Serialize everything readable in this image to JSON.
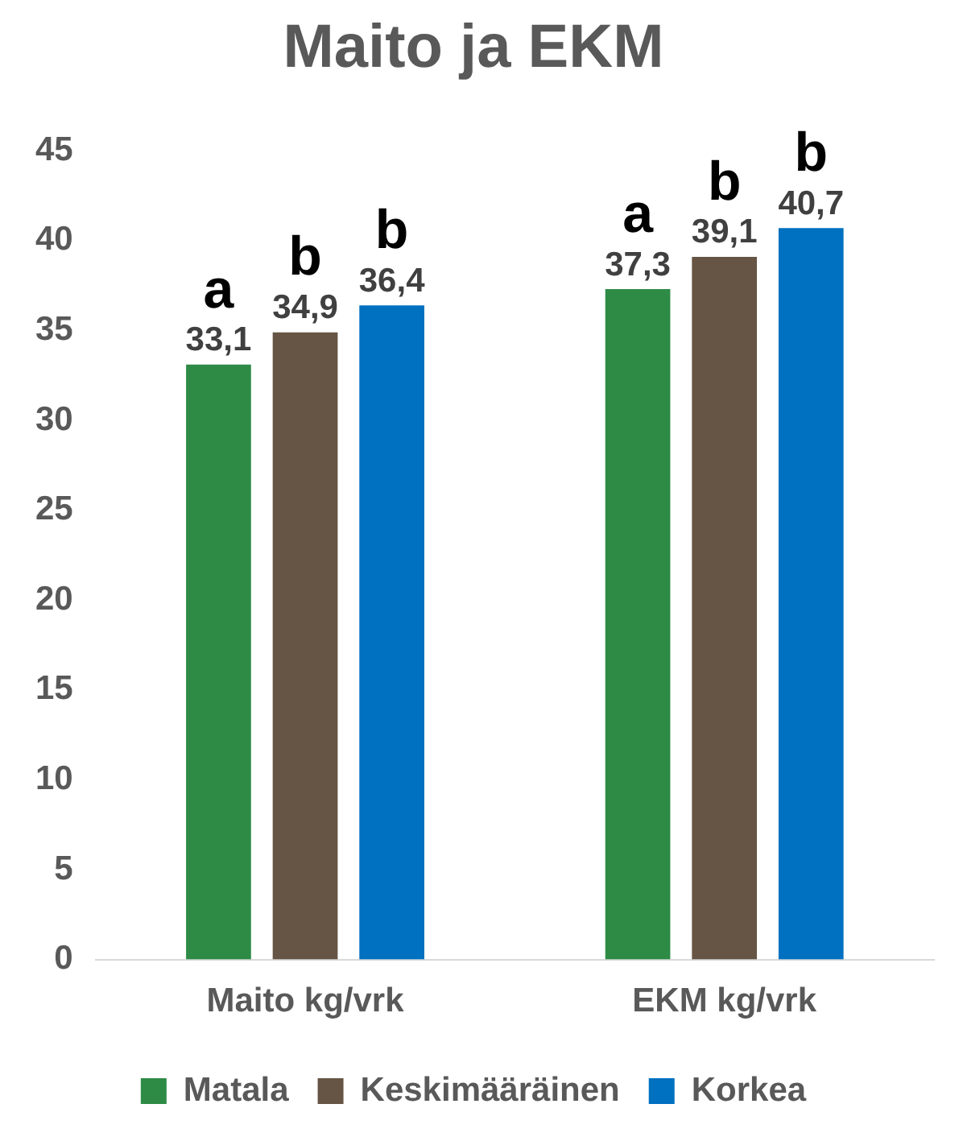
{
  "chart_data": {
    "type": "bar",
    "title": "Maito ja EKM",
    "categories": [
      "Maito kg/vrk",
      "EKM kg/vrk"
    ],
    "series": [
      {
        "name": "Matala",
        "color": "#2e8b46",
        "values": [
          33.1,
          37.3
        ],
        "value_labels": [
          "33,1",
          "37,3"
        ]
      },
      {
        "name": "Keskimääräinen",
        "color": "#665544",
        "values": [
          34.9,
          39.1
        ],
        "value_labels": [
          "34,9",
          "39,1"
        ]
      },
      {
        "name": "Korkea",
        "color": "#0070c0",
        "values": [
          36.4,
          40.7
        ],
        "value_labels": [
          "36,4",
          "40,7"
        ]
      }
    ],
    "annotations": [
      "a",
      "b",
      "b",
      "a",
      "b",
      "b"
    ],
    "ylim": [
      0,
      45
    ],
    "yticks": [
      0,
      5,
      10,
      15,
      20,
      25,
      30,
      35,
      40,
      45
    ],
    "grid": false,
    "legend": "bottom"
  }
}
